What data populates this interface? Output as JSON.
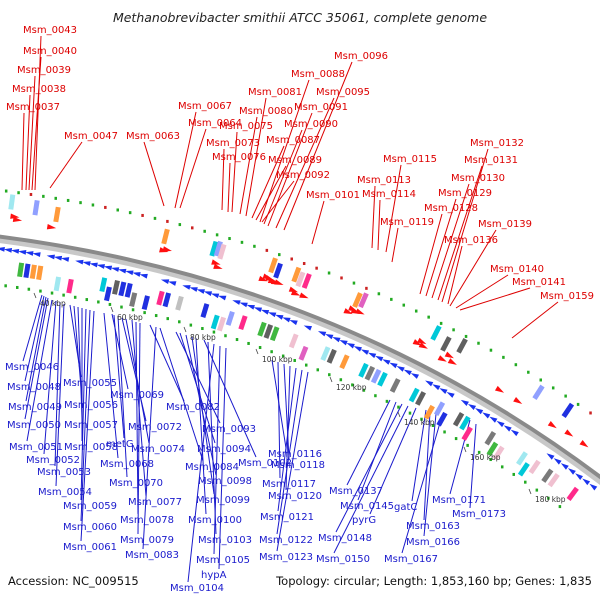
{
  "title": "Methanobrevibacter smithii ATCC 35061, complete genome",
  "footer": {
    "accession": "Accession: NC_009515",
    "topology": "Topology: circular; Length: 1,853,160 bp; Genes: 1,835"
  },
  "colors": {
    "forward_label": "#dd0000",
    "reverse_label": "#1a1acc",
    "backbone": "#909090",
    "forward_feature": "#ff1010",
    "reverse_feature": "#1a33ee",
    "gc_marker": "#22aa22"
  },
  "kbp_labels": [
    "40 kbp",
    "60 kbp",
    "80 kbp",
    "100 kbp",
    "120 kbp",
    "140 kbp",
    "160 kbp",
    "180 kbp"
  ],
  "forward_genes": [
    "Msm_0043",
    "Msm_0040",
    "Msm_0039",
    "Msm_0038",
    "Msm_0037",
    "Msm_0047",
    "Msm_0067",
    "Msm_0063",
    "Msm_0064",
    "Msm_0073",
    "Msm_0076",
    "Msm_0075",
    "Msm_0080",
    "Msm_0081",
    "Msm_0087",
    "Msm_0089",
    "Msm_0092",
    "Msm_0088",
    "Msm_0090",
    "Msm_0091",
    "Msm_0095",
    "Msm_0096",
    "Msm_0101",
    "Msm_0113",
    "Msm_0114",
    "Msm_0115",
    "Msm_0119",
    "Msm_0128",
    "Msm_0129",
    "Msm_0130",
    "Msm_0131",
    "Msm_0132",
    "Msm_0136",
    "Msm_0139",
    "Msm_0140",
    "Msm_0141",
    "Msm_0159"
  ],
  "reverse_genes": [
    "Msm_0046",
    "Msm_0048",
    "Msm_0049",
    "Msm_0050",
    "Msm_0051",
    "Msm_0052",
    "Msm_0053",
    "Msm_0054",
    "Msm_0055",
    "Msm_0056",
    "Msm_0057",
    "Msm_0058",
    "Msm_0059",
    "Msm_0060",
    "Msm_0061",
    "Msm_0068",
    "Msm_0069",
    "metG",
    "Msm_0070",
    "Msm_0072",
    "Msm_0074",
    "Msm_0077",
    "Msm_0078",
    "Msm_0079",
    "Msm_0082",
    "Msm_0083",
    "Msm_0084",
    "Msm_0093",
    "Msm_0094",
    "Msm_0098",
    "Msm_0099",
    "Msm_0100",
    "Msm_0102",
    "Msm_0103",
    "Msm_0104",
    "Msm_0105",
    "hypA",
    "Msm_0116",
    "Msm_0117",
    "Msm_0118",
    "Msm_0120",
    "Msm_0121",
    "Msm_0122",
    "Msm_0123",
    "Msm_0137",
    "Msm_0145",
    "Msm_0148",
    "Msm_0150",
    "pyrG",
    "gatC",
    "Msm_0163",
    "Msm_0166",
    "Msm_0167",
    "Msm_0171",
    "Msm_0173"
  ]
}
